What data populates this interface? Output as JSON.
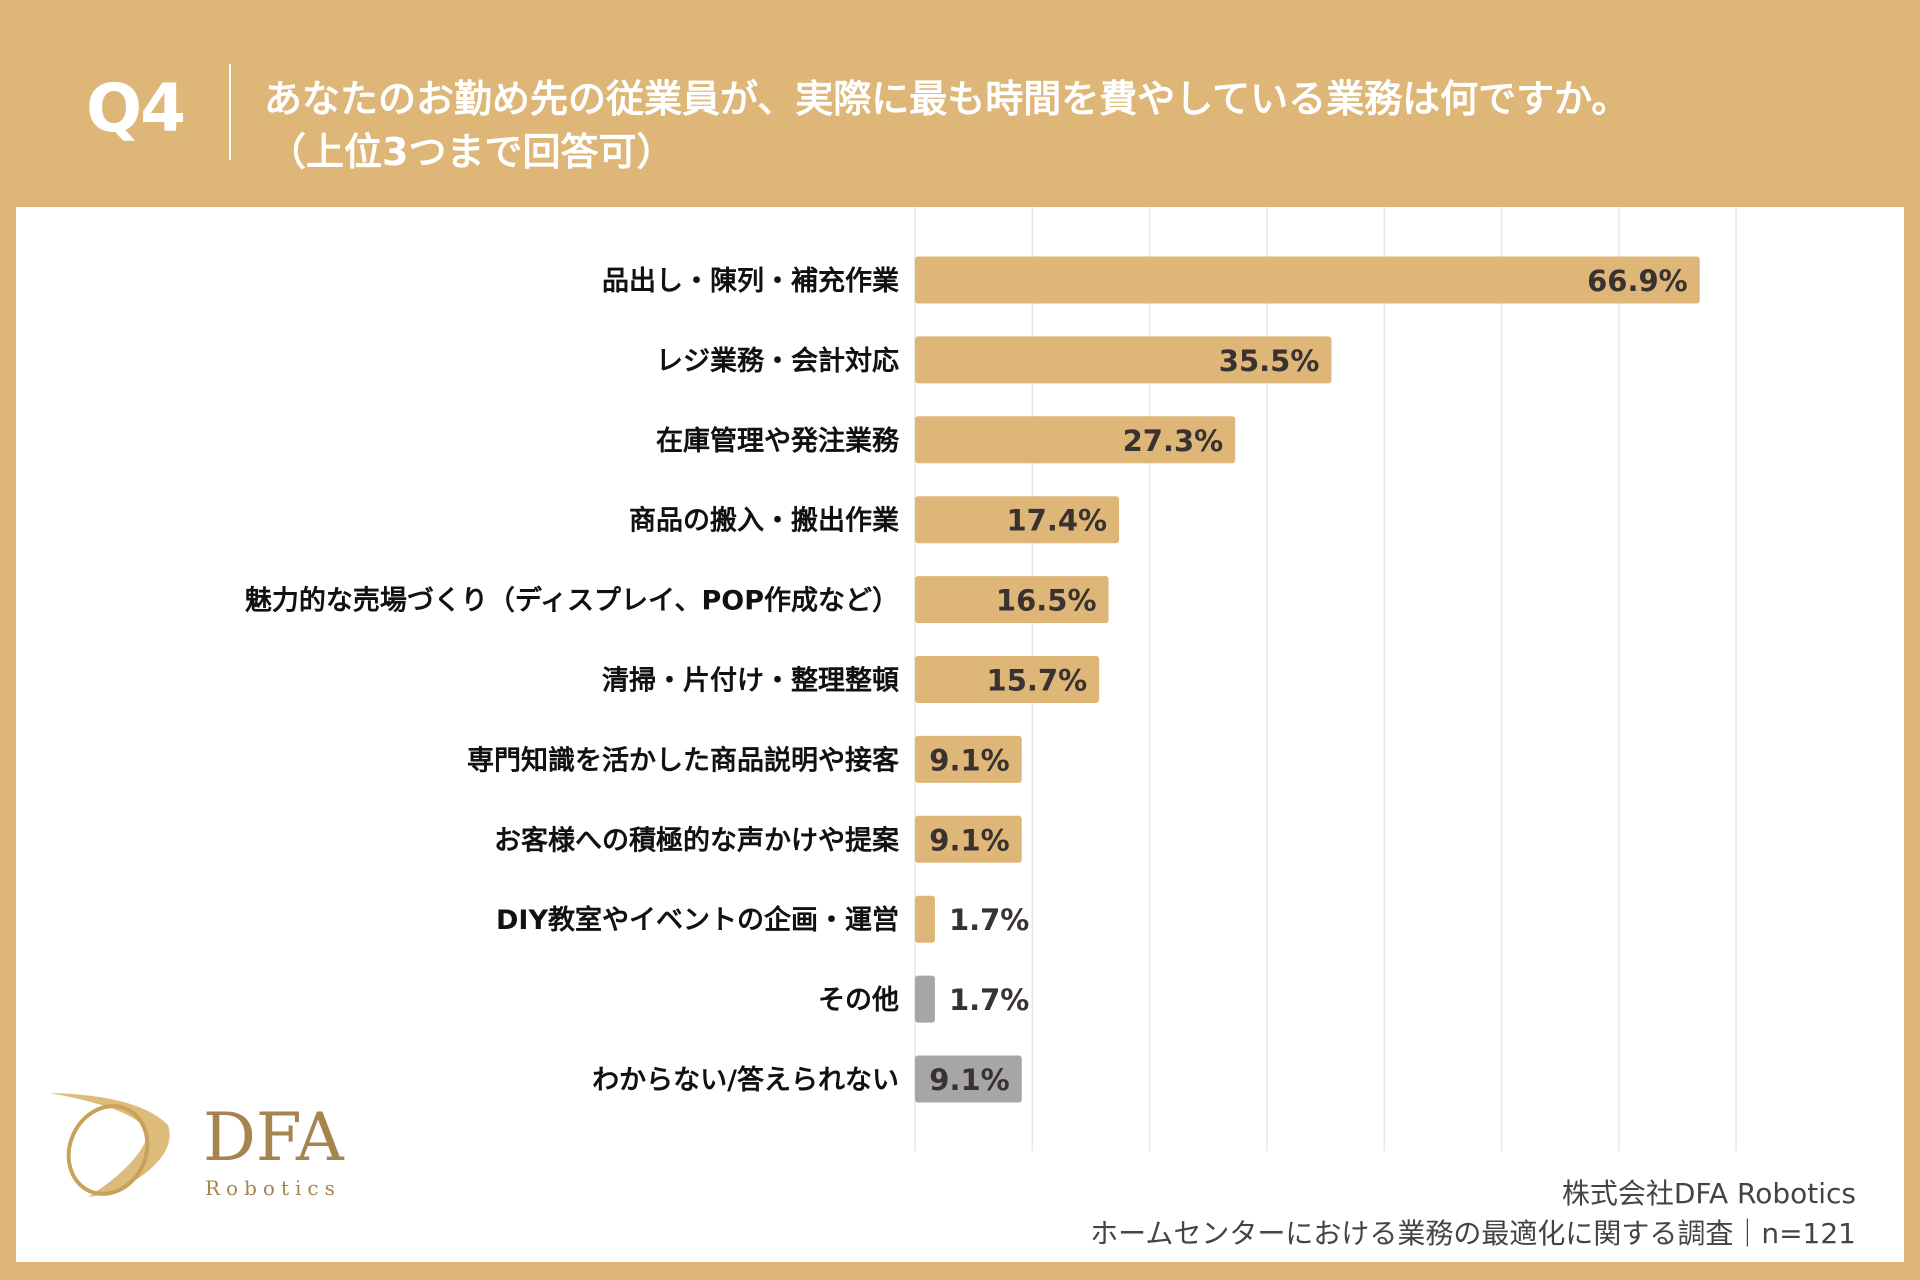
{
  "header": {
    "question_number": "Q4",
    "title_line1": "あなたのお勤め先の従業員が、実際に最も時間を費やしている業務は何ですか。",
    "title_line2": "（上位3つまで回答可）"
  },
  "chart_data": {
    "type": "bar",
    "orientation": "horizontal",
    "categories": [
      "品出し・陳列・補充作業",
      "レジ業務・会計対応",
      "在庫管理や発注業務",
      "商品の搬入・搬出作業",
      "魅力的な売場づくり（ディスプレイ、POP作成など）",
      "清掃・片付け・整理整頓",
      "専門知識を活かした商品説明や接客",
      "お客様への積極的な声かけや提案",
      "DIY教室やイベントの企画・運営",
      "その他",
      "わからない/答えられない"
    ],
    "values": [
      66.9,
      35.5,
      27.3,
      17.4,
      16.5,
      15.7,
      9.1,
      9.1,
      1.7,
      1.7,
      9.1
    ],
    "value_labels": [
      "66.9%",
      "35.5%",
      "27.3%",
      "17.4%",
      "16.5%",
      "15.7%",
      "9.1%",
      "9.1%",
      "1.7%",
      "1.7%",
      "9.1%"
    ],
    "bar_colors": [
      "#ddb678",
      "#ddb678",
      "#ddb678",
      "#ddb678",
      "#ddb678",
      "#ddb678",
      "#ddb678",
      "#ddb678",
      "#ddb678",
      "#a6a6a6",
      "#a6a6a6"
    ],
    "xlim": [
      0,
      70
    ],
    "grid": true,
    "unit": "%"
  },
  "footer": {
    "company": "株式会社DFA Robotics",
    "survey": "ホームセンターにおける業務の最適化に関する調査｜n=121"
  },
  "logo": {
    "text": "DFA",
    "subtext": "Robotics"
  },
  "colors": {
    "accent": "#ddb678",
    "gray": "#a6a6a6"
  }
}
